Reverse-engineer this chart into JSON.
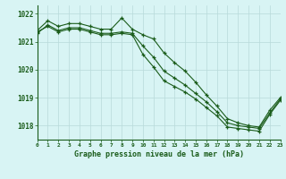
{
  "hours": [
    0,
    1,
    2,
    3,
    4,
    5,
    6,
    7,
    8,
    9,
    10,
    11,
    12,
    13,
    14,
    15,
    16,
    17,
    18,
    19,
    20,
    21,
    22,
    23
  ],
  "line1": [
    1021.4,
    1021.75,
    1021.55,
    1021.65,
    1021.65,
    1021.55,
    1021.45,
    1021.45,
    1021.85,
    1021.45,
    1021.25,
    1021.1,
    1020.6,
    1020.25,
    1019.95,
    1019.55,
    1019.1,
    1018.7,
    1018.25,
    1018.1,
    1018.0,
    1017.95,
    1018.55,
    1019.0
  ],
  "line2": [
    1021.3,
    1021.6,
    1021.4,
    1021.5,
    1021.5,
    1021.4,
    1021.3,
    1021.3,
    1021.35,
    1021.3,
    1020.85,
    1020.45,
    1019.95,
    1019.7,
    1019.45,
    1019.15,
    1018.85,
    1018.5,
    1018.1,
    1018.0,
    1017.95,
    1017.9,
    1018.45,
    1018.95
  ],
  "line3": [
    1021.35,
    1021.55,
    1021.35,
    1021.45,
    1021.45,
    1021.35,
    1021.25,
    1021.25,
    1021.3,
    1021.25,
    1020.55,
    1020.1,
    1019.6,
    1019.4,
    1019.2,
    1018.95,
    1018.65,
    1018.35,
    1017.95,
    1017.9,
    1017.85,
    1017.8,
    1018.4,
    1018.9
  ],
  "line_color": "#1a5c1a",
  "bg_color": "#d8f4f4",
  "grid_color": "#b8dada",
  "axis_label_color": "#1a5c1a",
  "tick_color": "#1a5c1a",
  "ylabel_ticks": [
    1018,
    1019,
    1020,
    1021,
    1022
  ],
  "xlim": [
    0,
    23
  ],
  "ylim": [
    1017.5,
    1022.3
  ],
  "xlabel": "Graphe pression niveau de la mer (hPa)"
}
